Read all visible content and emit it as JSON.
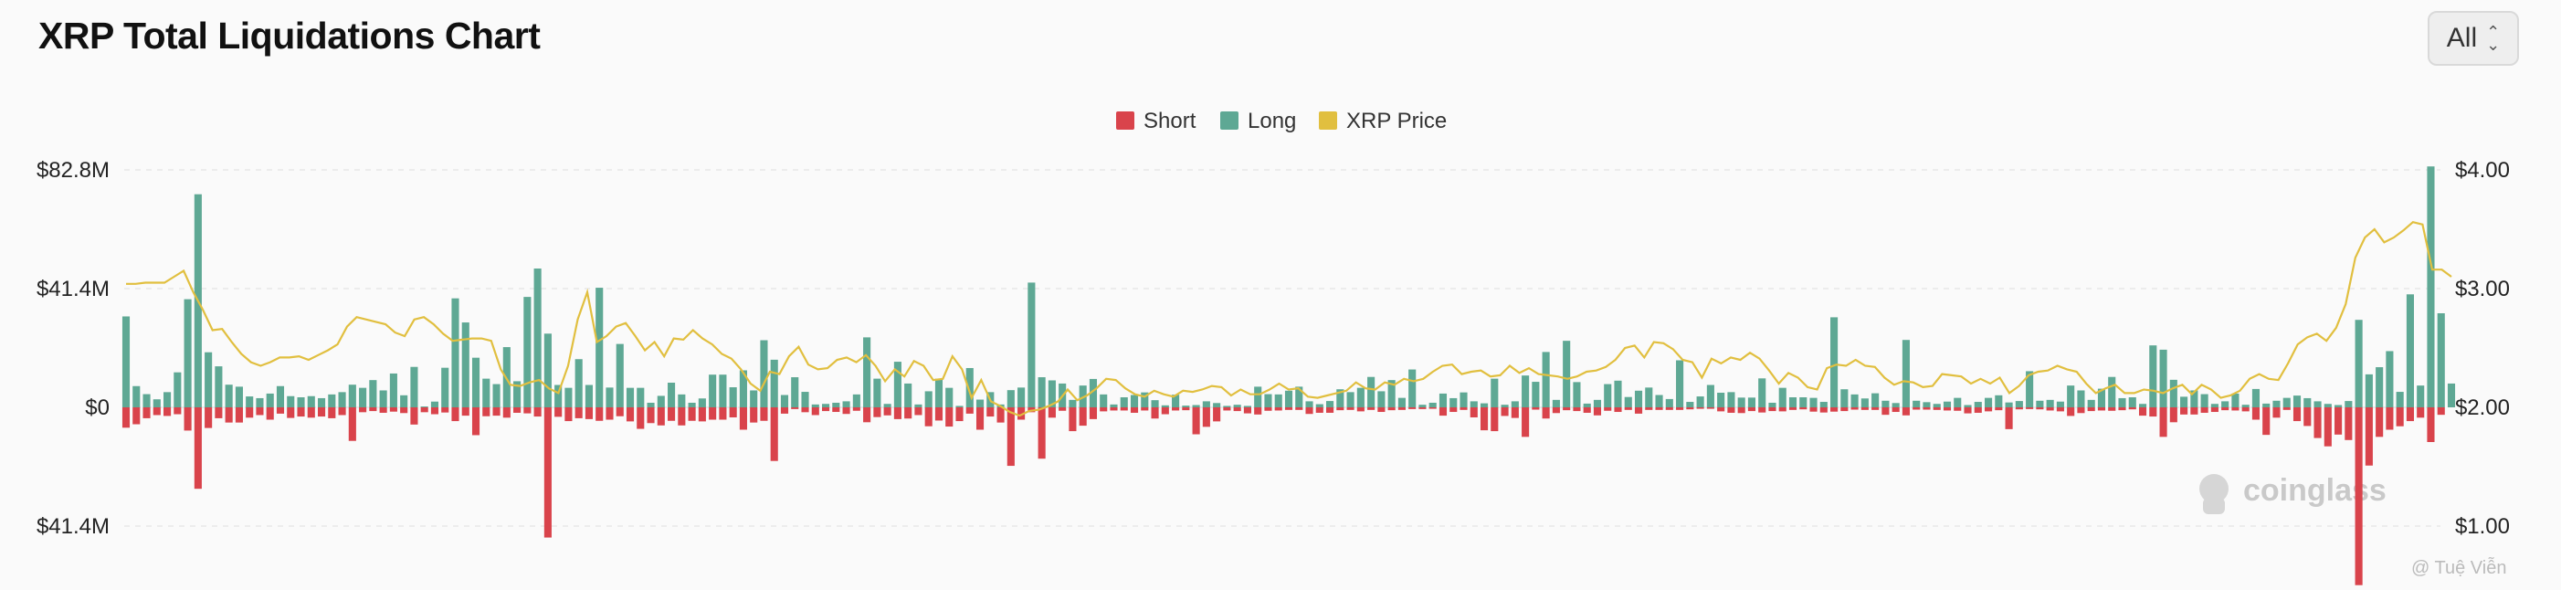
{
  "header": {
    "title": "XRP Total Liquidations Chart",
    "range_select": "All"
  },
  "legend": [
    {
      "label": "Short",
      "color": "#d9434b"
    },
    {
      "label": "Long",
      "color": "#5ea894"
    },
    {
      "label": "XRP Price",
      "color": "#e1bf3f"
    }
  ],
  "watermark": {
    "brand": "coinglass",
    "credit": "@ Tuệ Viễn"
  },
  "chart_data": {
    "type": "bar",
    "title": "XRP Total Liquidations Chart",
    "left_axis": {
      "ticks": [
        "$82.8M",
        "$41.4M",
        "$0",
        "$41.4M"
      ],
      "tick_values": [
        82.8,
        41.4,
        0,
        -41.4
      ],
      "range": [
        -62,
        82.8
      ],
      "unit": "USD millions"
    },
    "right_axis": {
      "ticks": [
        "$4.00",
        "$3.00",
        "$2.00",
        "$1.00"
      ],
      "tick_values": [
        4,
        3,
        2,
        1
      ],
      "range": [
        0.6,
        4.0
      ],
      "unit": "USD"
    },
    "grid": true,
    "legend_position": "top-center",
    "series": [
      {
        "name": "Long",
        "color": "#5ea894",
        "axis": "left",
        "values": [
          31.7,
          7.4,
          4.6,
          2.8,
          5.3,
          12.2,
          37.7,
          74.3,
          19.2,
          14.3,
          7.9,
          7.2,
          3.8,
          3.2,
          4.8,
          7.4,
          3.9,
          3.5,
          3.9,
          3.2,
          4.5,
          5.3,
          7.9,
          6.8,
          9.5,
          5.9,
          11.8,
          4.2,
          14.1,
          0.3,
          2.0,
          13.8,
          38.0,
          29.6,
          17.3,
          10.0,
          8.1,
          21.0,
          9.1,
          38.5,
          48.4,
          25.7,
          7.8,
          6.8,
          16.8,
          7.8,
          41.7,
          6.9,
          22.1,
          6.8,
          6.8,
          1.6,
          4.0,
          8.6,
          4.5,
          1.6,
          3.1,
          11.4,
          11.4,
          7.0,
          12.9,
          5.9,
          23.4,
          16.6,
          4.3,
          10.5,
          5.4,
          1.0,
          1.2,
          1.6,
          2.1,
          4.5,
          24.4,
          10.0,
          1.2,
          15.9,
          8.3,
          1.0,
          5.6,
          10.0,
          6.8,
          0.5,
          13.7,
          2.7,
          5.3,
          1.0,
          6.0,
          6.9,
          43.5,
          10.5,
          9.4,
          8.3,
          2.6,
          7.6,
          9.9,
          4.5,
          1.0,
          3.5,
          4.3,
          5.2,
          2.5,
          0.7,
          4.4,
          0.6,
          0.8,
          2.1,
          1.5,
          0.5,
          0.9,
          0.5,
          7.2,
          4.6,
          4.5,
          5.8,
          7.2,
          2.1,
          1.1,
          2.2,
          6.3,
          5.3,
          6.8,
          10.6,
          5.6,
          9.5,
          3.3,
          13.2,
          0.9,
          1.6,
          4.8,
          3.2,
          5.2,
          2.1,
          1.4,
          10.0,
          0.9,
          2.1,
          11.1,
          8.9,
          19.3,
          2.6,
          23.2,
          8.8,
          1.3,
          2.6,
          8.1,
          9.3,
          3.6,
          5.8,
          6.9,
          4.3,
          2.9,
          16.4,
          1.9,
          3.8,
          7.8,
          5.1,
          5.3,
          3.4,
          3.4,
          10.1,
          1.6,
          6.8,
          3.5,
          3.5,
          3.3,
          1.9,
          31.4,
          6.3,
          4.5,
          3.1,
          4.9,
          2.3,
          1.5,
          23.5,
          2.3,
          1.8,
          1.2,
          2.0,
          3.3,
          0.8,
          1.9,
          3.3,
          4.2,
          1.7,
          2.2,
          12.6,
          2.3,
          2.6,
          2.0,
          7.6,
          5.9,
          2.6,
          6.5,
          10.6,
          3.2,
          3.5,
          1.2,
          21.6,
          20.1,
          9.6,
          3.7,
          5.9,
          4.6,
          1.2,
          2.1,
          4.8,
          0.9,
          6.4,
          1.3,
          2.3,
          3.3,
          4.1,
          3.2,
          2.1,
          1.2,
          0.8,
          2.2,
          30.5,
          11.5,
          14.0,
          19.6,
          5.4,
          39.4,
          7.6,
          84.0,
          32.8,
          8.3
        ]
      },
      {
        "name": "Short",
        "color": "#d9434b",
        "axis": "left",
        "values": [
          -7.1,
          -5.9,
          -3.8,
          -2.7,
          -3.0,
          -2.4,
          -8.1,
          -28.4,
          -7.2,
          -3.8,
          -5.3,
          -5.3,
          -3.6,
          -2.7,
          -4.3,
          -2.2,
          -3.7,
          -3.2,
          -3.6,
          -3.2,
          -3.8,
          -2.7,
          -11.7,
          -1.7,
          -1.3,
          -1.9,
          -1.5,
          -2.0,
          -6.0,
          -1.7,
          -2.4,
          -1.8,
          -4.8,
          -2.9,
          -9.7,
          -3.1,
          -2.9,
          -3.6,
          -1.9,
          -2.1,
          -3.2,
          -45.4,
          -3.3,
          -4.8,
          -3.8,
          -4.1,
          -4.7,
          -4.3,
          -3.1,
          -4.9,
          -7.5,
          -5.5,
          -6.3,
          -4.7,
          -6.3,
          -4.7,
          -4.9,
          -4.3,
          -4.3,
          -3.5,
          -7.8,
          -5.3,
          -4.7,
          -18.7,
          -2.2,
          -0.6,
          -1.7,
          -2.7,
          -1.3,
          -1.6,
          -2.3,
          -1.2,
          -5.2,
          -3.4,
          -2.8,
          -4.1,
          -3.9,
          -2.7,
          -6.6,
          -4.6,
          -6.7,
          -4.8,
          -2.2,
          -7.8,
          -3.2,
          -5.3,
          -20.4,
          -4.3,
          -1.7,
          -17.9,
          -3.6,
          -1.2,
          -8.3,
          -6.4,
          -4.1,
          -1.4,
          -1.1,
          -1.1,
          -1.9,
          -1.1,
          -3.9,
          -2.4,
          -1.1,
          -1.0,
          -9.4,
          -6.8,
          -4.9,
          -1.1,
          -1.3,
          -2.1,
          -2.5,
          -1.2,
          -1.1,
          -0.9,
          -0.9,
          -2.3,
          -1.9,
          -1.9,
          -1.0,
          -0.9,
          -1.4,
          -0.9,
          -1.6,
          -1.0,
          -0.9,
          -0.6,
          -0.6,
          -0.5,
          -2.9,
          -1.6,
          -0.9,
          -3.5,
          -8.0,
          -8.3,
          -3.0,
          -3.7,
          -10.3,
          -0.8,
          -3.9,
          -2.0,
          -1.0,
          -1.3,
          -1.9,
          -2.8,
          -1.2,
          -1.6,
          -0.9,
          -2.2,
          -0.9,
          -0.9,
          -0.9,
          -0.9,
          -0.7,
          -0.5,
          -0.5,
          -1.4,
          -1.9,
          -2.0,
          -1.3,
          -1.8,
          -1.3,
          -1.4,
          -0.9,
          -0.7,
          -1.5,
          -1.8,
          -1.5,
          -1.3,
          -0.8,
          -0.9,
          -0.9,
          -2.6,
          -1.6,
          -2.8,
          -0.8,
          -0.8,
          -0.9,
          -1.1,
          -1.2,
          -2.1,
          -1.9,
          -1.4,
          -1.0,
          -7.6,
          -0.7,
          -0.6,
          -0.7,
          -1.1,
          -1.4,
          -3.0,
          -2.0,
          -1.3,
          -1.1,
          -1.2,
          -1.0,
          -0.7,
          -2.9,
          -3.2,
          -10.3,
          -5.2,
          -2.5,
          -2.5,
          -1.9,
          -1.6,
          -1.0,
          -1.1,
          -1.4,
          -4.3,
          -9.6,
          -3.6,
          -0.9,
          -4.8,
          -6.5,
          -10.7,
          -13.6,
          -9.5,
          -11.4,
          -62.0,
          -20.3,
          -10.3,
          -7.8,
          -6.6,
          -4.8,
          -3.6,
          -12.1,
          -2.6
        ]
      },
      {
        "name": "XRP Price",
        "color": "#e1bf3f",
        "axis": "right",
        "values": [
          3.04,
          3.04,
          3.05,
          3.05,
          3.05,
          3.1,
          3.15,
          2.97,
          2.82,
          2.65,
          2.66,
          2.55,
          2.45,
          2.38,
          2.35,
          2.38,
          2.42,
          2.42,
          2.43,
          2.4,
          2.44,
          2.48,
          2.53,
          2.68,
          2.76,
          2.74,
          2.72,
          2.7,
          2.63,
          2.6,
          2.74,
          2.76,
          2.7,
          2.62,
          2.56,
          2.57,
          2.58,
          2.58,
          2.56,
          2.32,
          2.19,
          2.18,
          2.21,
          2.23,
          2.16,
          2.12,
          2.35,
          2.74,
          2.97,
          2.55,
          2.6,
          2.68,
          2.71,
          2.6,
          2.48,
          2.55,
          2.43,
          2.58,
          2.57,
          2.65,
          2.58,
          2.53,
          2.45,
          2.41,
          2.32,
          2.2,
          2.14,
          2.3,
          2.28,
          2.43,
          2.51,
          2.36,
          2.32,
          2.33,
          2.4,
          2.42,
          2.38,
          2.44,
          2.35,
          2.22,
          2.32,
          2.26,
          2.39,
          2.35,
          2.23,
          2.24,
          2.43,
          2.32,
          2.08,
          2.23,
          2.05,
          2.01,
          1.96,
          1.93,
          1.97,
          1.98,
          2.01,
          2.05,
          2.15,
          2.06,
          2.1,
          2.16,
          2.24,
          2.23,
          2.16,
          2.11,
          2.09,
          2.14,
          2.11,
          2.09,
          2.14,
          2.13,
          2.15,
          2.18,
          2.17,
          2.1,
          2.15,
          2.11,
          2.11,
          2.15,
          2.2,
          2.15,
          2.16,
          2.09,
          2.08,
          2.1,
          2.12,
          2.14,
          2.21,
          2.16,
          2.15,
          2.21,
          2.19,
          2.24,
          2.22,
          2.24,
          2.3,
          2.35,
          2.36,
          2.28,
          2.3,
          2.31,
          2.26,
          2.27,
          2.35,
          2.29,
          2.33,
          2.28,
          2.27,
          2.26,
          2.24,
          2.26,
          2.3,
          2.31,
          2.34,
          2.4,
          2.5,
          2.52,
          2.42,
          2.55,
          2.54,
          2.49,
          2.4,
          2.38,
          2.25,
          2.41,
          2.37,
          2.42,
          2.4,
          2.46,
          2.41,
          2.31,
          2.2,
          2.29,
          2.25,
          2.17,
          2.15,
          2.33,
          2.36,
          2.35,
          2.4,
          2.35,
          2.34,
          2.25,
          2.19,
          2.22,
          2.21,
          2.17,
          2.18,
          2.28,
          2.27,
          2.26,
          2.2,
          2.24,
          2.2,
          2.25,
          2.12,
          2.18,
          2.27,
          2.3,
          2.31,
          2.35,
          2.32,
          2.3,
          2.2,
          2.12,
          2.16,
          2.19,
          2.12,
          2.12,
          2.15,
          2.14,
          2.12,
          2.16,
          2.19,
          2.11,
          2.19,
          2.15,
          2.08,
          2.1,
          2.14,
          2.24,
          2.28,
          2.24,
          2.23,
          2.37,
          2.53,
          2.59,
          2.62,
          2.56,
          2.67,
          2.87,
          3.26,
          3.43,
          3.5,
          3.39,
          3.43,
          3.49,
          3.56,
          3.54,
          3.16,
          3.16,
          3.1
        ]
      }
    ]
  }
}
